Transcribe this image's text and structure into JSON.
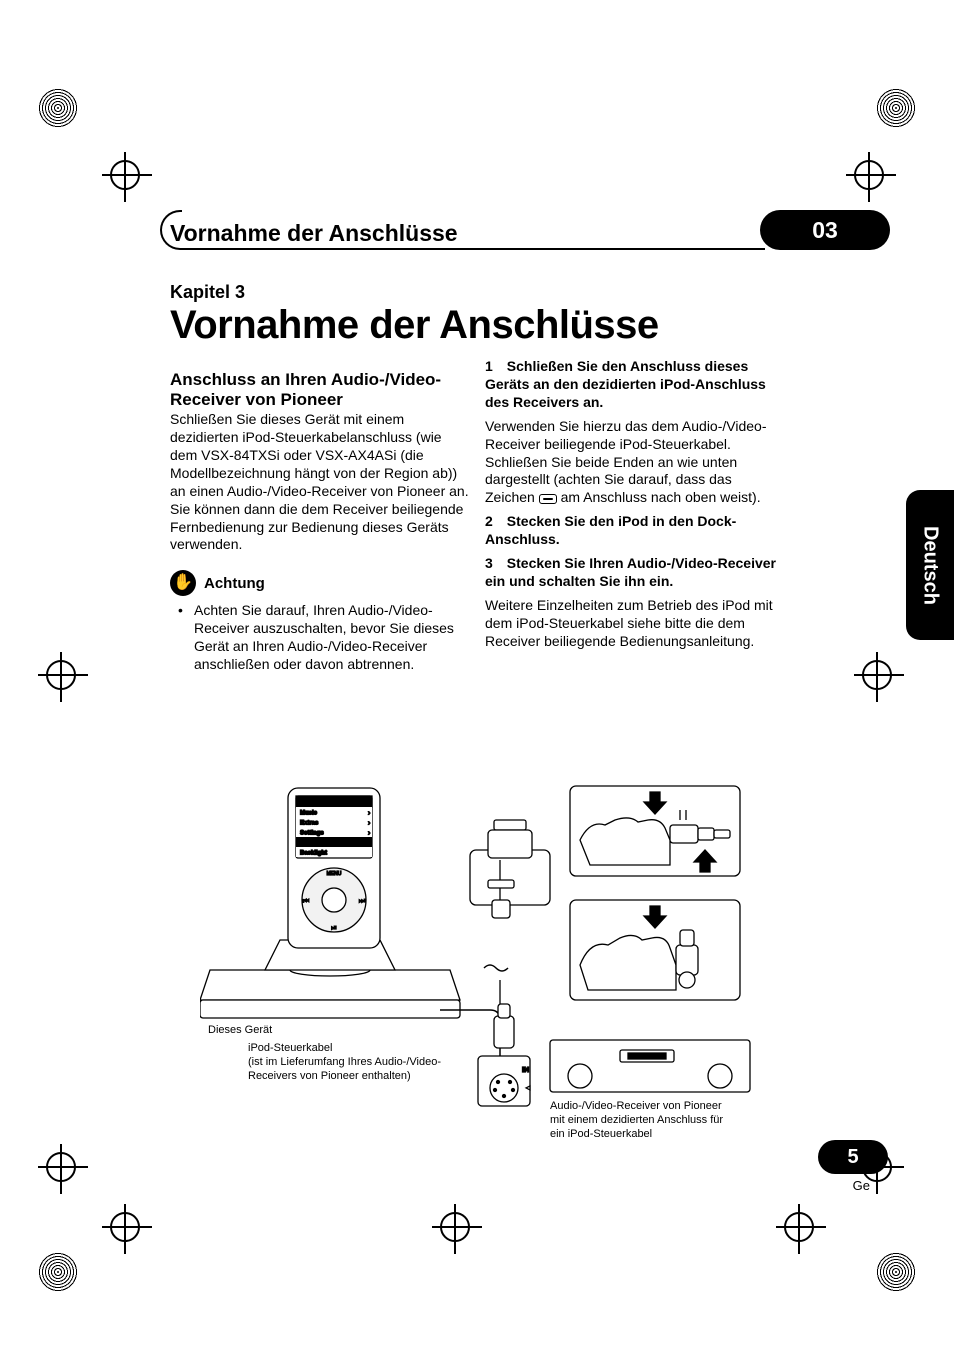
{
  "header": {
    "running_title": "Vornahme der Anschlüsse",
    "chapter_number_pill": "03"
  },
  "chapter": {
    "label": "Kapitel 3",
    "title": "Vornahme der Anschlüsse"
  },
  "left_column": {
    "section_heading": "Anschluss an Ihren Audio-/Video-Receiver von Pioneer",
    "intro": "Schließen Sie dieses Gerät mit einem dezidierten iPod-Steuerkabelanschluss (wie dem VSX-84TXSi oder VSX-AX4ASi (die Modellbezeichnung hängt von der Region ab)) an einen Audio-/Video-Receiver von Pioneer an. Sie können dann die dem Receiver beiliegende Fernbedienung zur Bedienung dieses Geräts verwenden.",
    "caution_label": "Achtung",
    "caution_bullet": "Achten Sie darauf, Ihren Audio-/Video-Receiver auszuschalten, bevor Sie dieses Gerät an Ihren Audio-/Video-Receiver anschließen oder davon abtrennen."
  },
  "right_column": {
    "step1_head": "Schließen Sie den Anschluss dieses Geräts an den dezidierten iPod-Anschluss des Receivers an.",
    "step1_body_a": "Verwenden Sie hierzu das dem Audio-/Video-Receiver beiliegende iPod-Steuerkabel. Schließen Sie beide Enden an wie unten dargestellt (achten Sie darauf, dass das Zeichen ",
    "step1_body_b": " am Anschluss nach oben weist).",
    "step2_head": "Stecken Sie den iPod in den Dock-Anschluss.",
    "step3_head": "Stecken Sie Ihren Audio-/Video-Receiver ein und schalten Sie ihn ein.",
    "step3_body": "Weitere Einzelheiten zum Betrieb des iPod mit dem iPod-Steuerkabel siehe bitte die dem Receiver beiliegende Bedienungsanleitung."
  },
  "language_tab": "Deutsch",
  "page_number": "5",
  "language_short": "Ge",
  "diagram": {
    "ipod_title": "iPod",
    "menu_items": [
      "Music",
      "Extras",
      "Settings",
      "Shuffle Songs",
      "Backlight"
    ],
    "menu_label": "MENU",
    "label_device": "Dieses Gerät",
    "label_cable": "iPod-Steuerkabel",
    "label_cable_sub": "(ist im Lieferumfang Ihres Audio-/Video-Receivers von Pioneer enthalten)",
    "label_receiver": "Audio-/Video-Receiver von Pioneer mit einem dezidierten Anschluss für ein iPod-Steuerkabel",
    "port_label": "IN",
    "colors": {
      "stroke": "#000000",
      "fill": "#ffffff",
      "highlight": "#000000"
    }
  }
}
